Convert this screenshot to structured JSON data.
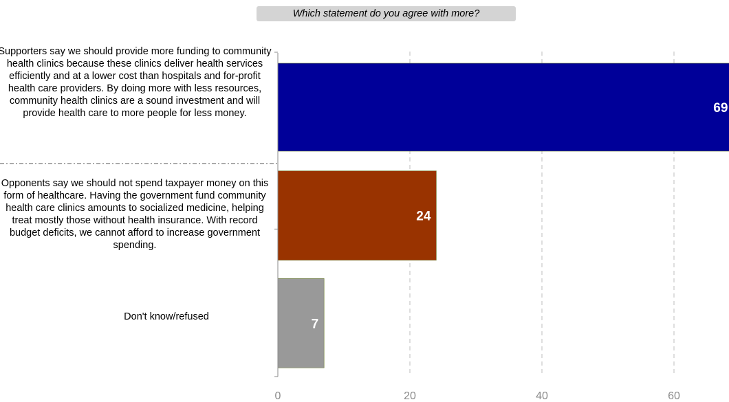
{
  "chart_data": {
    "type": "bar",
    "orientation": "horizontal",
    "title": "Which statement do you agree with more?",
    "categories": [
      "Supporters say we should provide more funding to community health clinics because these clinics deliver health services efficiently and at a lower cost than hospitals and for-profit health care providers.  By doing more with less resources, community health clinics are a sound investment and will provide health care to more people for less money.",
      "Opponents say we should not spend taxpayer money on this form of healthcare.  Having the government fund community health care clinics amounts to socialized medicine, helping treat mostly those without health insurance.  With record budget deficits, we cannot afford to increase government spending.",
      "Don't know/refused"
    ],
    "values": [
      69,
      24,
      7
    ],
    "value_labels": [
      "69",
      "24",
      "7"
    ],
    "colors": [
      "#000099",
      "#993300",
      "#999999"
    ],
    "xlim": [
      0,
      69
    ],
    "xticks": [
      0,
      20,
      40,
      60
    ],
    "xtick_labels": [
      "0",
      "20",
      "40",
      "60"
    ],
    "grid": "vertical-dashed",
    "xlabel": "",
    "ylabel": ""
  }
}
